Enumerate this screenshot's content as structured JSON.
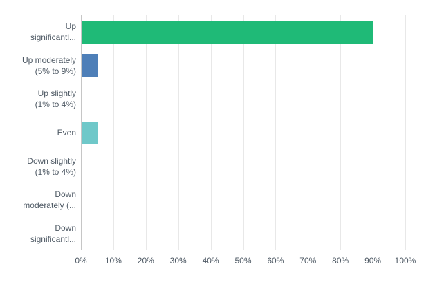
{
  "chart": {
    "background_color": "#ffffff",
    "text_color": "#4e5964",
    "gridline_color": "#e8e8e8",
    "axis_line_color": "#c6c6c6",
    "bottom_line_color": "#e2e2e2"
  },
  "chart_data": {
    "type": "bar",
    "orientation": "horizontal",
    "title": "",
    "xlabel": "",
    "ylabel": "",
    "grid": true,
    "legend": false,
    "xlim": [
      0,
      100
    ],
    "categories": [
      "Up significantl...",
      "Up moderately (5% to 9%)",
      "Up slightly (1% to 4%)",
      "Even",
      "Down slightly (1% to 4%)",
      "Down moderately (...",
      "Down significantl..."
    ],
    "category_lines": [
      [
        "Up",
        "significantl..."
      ],
      [
        "Up moderately",
        "(5% to 9%)"
      ],
      [
        "Up slightly",
        "(1% to 4%)"
      ],
      [
        "Even"
      ],
      [
        "Down slightly",
        "(1% to 4%)"
      ],
      [
        "Down",
        "moderately (..."
      ],
      [
        "Down",
        "significantl..."
      ]
    ],
    "values": [
      90,
      5,
      0,
      5,
      0,
      0,
      0
    ],
    "value_unit": "%",
    "bar_colors": [
      "#1fba77",
      "#4e7fb8",
      null,
      "#6fc8c9",
      null,
      null,
      null
    ],
    "x_ticks": [
      "0%",
      "10%",
      "20%",
      "30%",
      "40%",
      "50%",
      "60%",
      "70%",
      "80%",
      "90%",
      "100%"
    ],
    "x_tick_values": [
      0,
      10,
      20,
      30,
      40,
      50,
      60,
      70,
      80,
      90,
      100
    ]
  }
}
